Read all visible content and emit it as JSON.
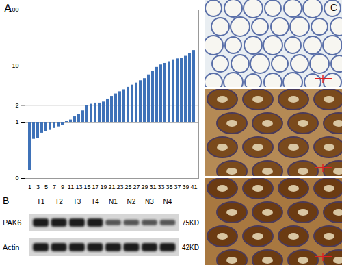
{
  "chart_data": {
    "type": "bar",
    "annotations": [
      "A"
    ],
    "categories": [
      1,
      null,
      3,
      null,
      5,
      null,
      7,
      null,
      9,
      null,
      11,
      null,
      13,
      null,
      15,
      null,
      17,
      null,
      19,
      null,
      21,
      null,
      23,
      null,
      25,
      null,
      27,
      null,
      29,
      null,
      31,
      null,
      33,
      null,
      35,
      null,
      37,
      null,
      39,
      null,
      41
    ],
    "values": [
      0.14,
      0.5,
      0.52,
      0.64,
      0.68,
      0.72,
      0.78,
      0.83,
      0.87,
      1.05,
      1.1,
      1.25,
      1.4,
      1.6,
      2.0,
      2.1,
      2.2,
      2.2,
      2.3,
      2.6,
      2.9,
      3.2,
      3.5,
      3.8,
      4.2,
      4.6,
      5.0,
      5.5,
      6.0,
      7.0,
      8.0,
      9.5,
      10.5,
      11.2,
      12,
      13,
      13.5,
      14,
      15,
      17,
      19
    ],
    "color": "#3f72b8",
    "log": "y",
    "ylim": [
      0.1,
      100
    ],
    "yticks": [
      {
        "value": 0.1,
        "label": "0"
      },
      1,
      2,
      10,
      100
    ],
    "grid": true
  },
  "blot": {
    "label": "B",
    "lanes": [
      "T1",
      "T2",
      "T3",
      "T4",
      "N1",
      "N2",
      "N3",
      "N4"
    ],
    "rows": [
      {
        "name": "PAK6",
        "size": "75KD"
      },
      {
        "name": "Actin",
        "size": "42KD"
      }
    ]
  },
  "images": {
    "label": "C"
  }
}
